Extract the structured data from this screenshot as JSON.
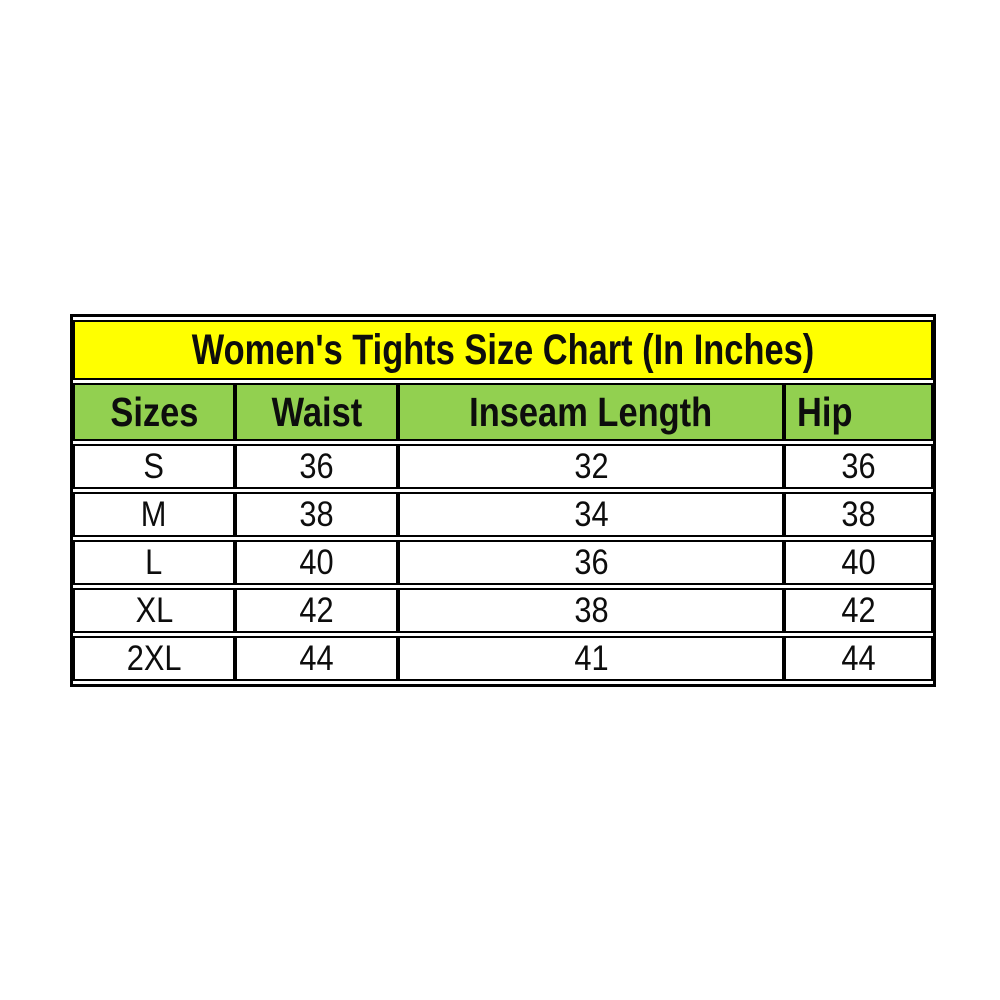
{
  "colors": {
    "title_background": "#FFFF00",
    "header_background": "#92D050",
    "cell_background": "#FFFFFF",
    "border": "#000000",
    "text": "#0D0D0D",
    "page_background": "#FFFFFF"
  },
  "chart_data": {
    "type": "table",
    "title": "Women's Tights Size Chart (In Inches)",
    "units": "inches",
    "columns": [
      "Sizes",
      "Waist",
      "Inseam Length",
      "Hip"
    ],
    "rows": [
      [
        "S",
        "36",
        "32",
        "36"
      ],
      [
        "M",
        "38",
        "34",
        "38"
      ],
      [
        "L",
        "40",
        "36",
        "40"
      ],
      [
        "XL",
        "42",
        "38",
        "42"
      ],
      [
        "2XL",
        "44",
        "41",
        "44"
      ]
    ]
  }
}
